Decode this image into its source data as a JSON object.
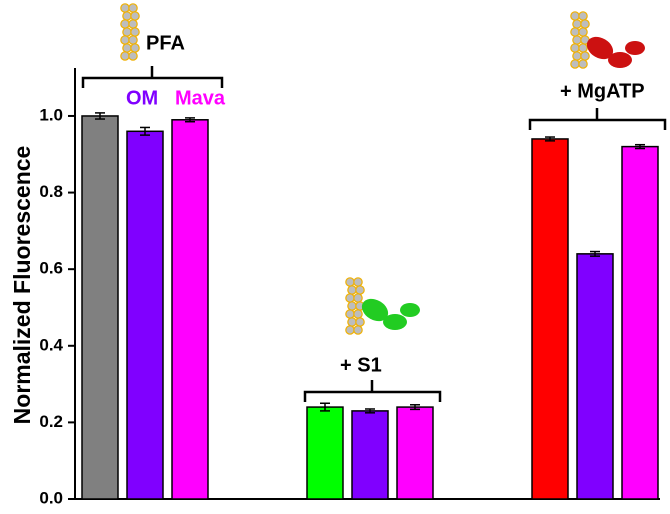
{
  "chart_data": {
    "type": "bar",
    "y_label": "Normalized Fluorescence",
    "categories": [
      null,
      null,
      null,
      null,
      null,
      null,
      null,
      null,
      null
    ],
    "values": [
      1.0,
      0.96,
      0.99,
      0.24,
      0.23,
      0.24,
      0.94,
      0.64,
      0.92
    ],
    "errors": [
      0.008,
      0.01,
      0.005,
      0.01,
      0.005,
      0.006,
      0.005,
      0.006,
      0.005
    ],
    "colors": [
      "#808080",
      "#8000ff",
      "#ff00ff",
      "#00ff00",
      "#8000ff",
      "#ff00ff",
      "#ff0000",
      "#8000ff",
      "#ff00ff"
    ],
    "ylim": [
      0,
      1.12
    ],
    "yticks": [
      {
        "value": 0,
        "label": "0.0"
      },
      0.2,
      0.4,
      0.6,
      0.8,
      {
        "value": 1,
        "label": "1.0"
      }
    ],
    "annotations": [
      "PFA",
      "OM",
      "Mava",
      "+ S1",
      "+ MgATP"
    ]
  }
}
